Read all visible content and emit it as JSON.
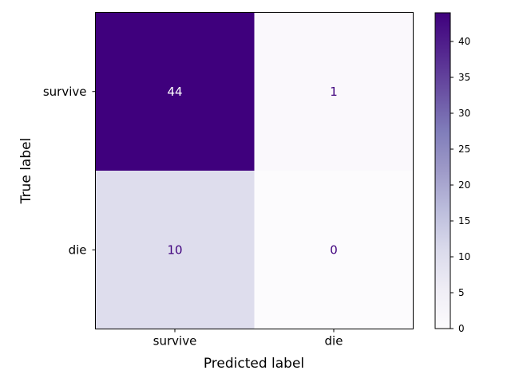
{
  "chart_data": {
    "type": "heatmap",
    "title": "",
    "xlabel": "Predicted label",
    "ylabel": "True label",
    "x_categories": [
      "survive",
      "die"
    ],
    "y_categories": [
      "survive",
      "die"
    ],
    "values": [
      [
        44,
        1
      ],
      [
        10,
        0
      ]
    ],
    "colormap": "Purples",
    "colors": {
      "low": "#fcfbfd",
      "high": "#3f007d"
    },
    "colorbar": {
      "range": [
        0,
        44
      ],
      "ticks": [
        0,
        5,
        10,
        15,
        20,
        25,
        30,
        35,
        40
      ],
      "tick_labels": [
        "0",
        "5",
        "10",
        "15",
        "20",
        "25",
        "30",
        "35",
        "40"
      ]
    }
  }
}
